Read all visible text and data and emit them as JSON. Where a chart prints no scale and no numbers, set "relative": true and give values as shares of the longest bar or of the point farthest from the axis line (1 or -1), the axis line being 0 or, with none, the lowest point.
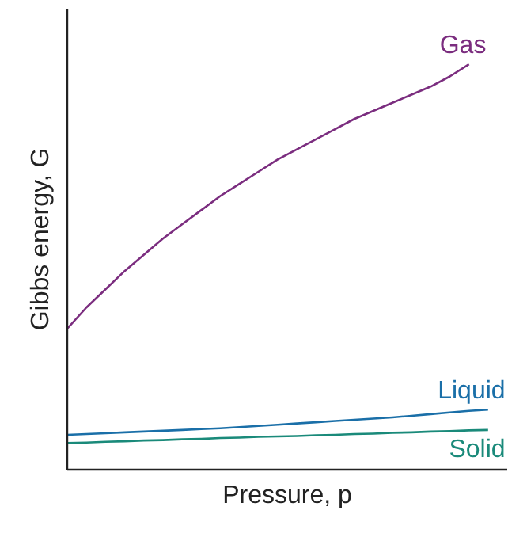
{
  "chart_data": {
    "type": "line",
    "relative": true,
    "xlabel": "Pressure, p",
    "ylabel": "Gibbs energy, G",
    "categories": [
      null,
      null,
      null,
      null,
      null,
      null,
      null,
      null,
      null,
      null,
      null,
      null,
      null,
      null,
      null,
      null,
      null,
      null,
      null,
      null,
      null,
      null,
      null
    ],
    "series": [
      {
        "name": "Gas",
        "color": "#7b2d7f",
        "values": [
          0.348,
          0.4,
          0.445,
          0.49,
          0.53,
          0.57,
          0.605,
          0.64,
          0.675,
          0.705,
          0.735,
          0.765,
          0.79,
          0.815,
          0.84,
          0.865,
          0.885,
          0.905,
          0.925,
          0.945,
          0.97,
          1.0,
          null
        ]
      },
      {
        "name": "Liquid",
        "color": "#1a6fa8",
        "values": [
          0.086,
          0.088,
          0.09,
          0.092,
          0.094,
          0.096,
          0.098,
          0.1,
          0.102,
          0.105,
          0.108,
          0.111,
          0.114,
          0.117,
          0.12,
          0.123,
          0.126,
          0.129,
          0.133,
          0.137,
          0.141,
          0.145,
          0.148
        ]
      },
      {
        "name": "Solid",
        "color": "#1a8a7a",
        "values": [
          0.066,
          0.067,
          0.069,
          0.07,
          0.072,
          0.073,
          0.075,
          0.076,
          0.078,
          0.079,
          0.081,
          0.082,
          0.083,
          0.085,
          0.086,
          0.088,
          0.089,
          0.091,
          0.092,
          0.094,
          0.095,
          0.097,
          0.098
        ]
      }
    ]
  }
}
